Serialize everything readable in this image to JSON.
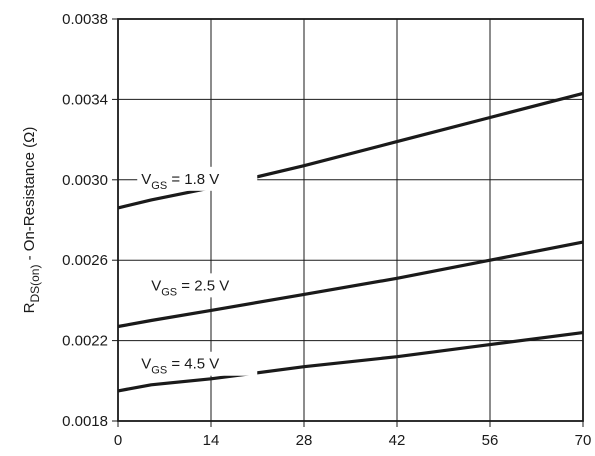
{
  "chart_data": {
    "type": "line",
    "xlabel": "",
    "ylabel_parts": {
      "main": "R",
      "subscript": "DS(on)",
      "suffix": " - On-Resistance (Ω)"
    },
    "xlim": [
      0,
      70
    ],
    "ylim": [
      0.0018,
      0.0038
    ],
    "x_ticks": [
      0,
      14,
      28,
      42,
      56,
      70
    ],
    "x_tick_labels": [
      "0",
      "14",
      "28",
      "42",
      "56",
      "70"
    ],
    "y_ticks": [
      0.0018,
      0.0022,
      0.0026,
      0.003,
      0.0034,
      0.0038
    ],
    "y_tick_labels": [
      "0.0018",
      "0.0022",
      "0.0026",
      "0.0030",
      "0.0034",
      "0.0038"
    ],
    "grid": true,
    "series": [
      {
        "label_parts": {
          "main": "V",
          "subscript": "GS",
          "suffix": " = 1.8 V"
        },
        "label_at": [
          3.5,
          0.00298
        ],
        "x": [
          0,
          5,
          14,
          28,
          42,
          56,
          70
        ],
        "y": [
          0.00286,
          0.0029,
          0.00296,
          0.00307,
          0.00319,
          0.00331,
          0.00343
        ]
      },
      {
        "label_parts": {
          "main": "V",
          "subscript": "GS",
          "suffix": " = 2.5 V"
        },
        "label_at": [
          5,
          0.00245
        ],
        "x": [
          0,
          5,
          14,
          28,
          42,
          56,
          70
        ],
        "y": [
          0.00227,
          0.0023,
          0.00235,
          0.00243,
          0.00251,
          0.0026,
          0.00269
        ]
      },
      {
        "label_parts": {
          "main": "V",
          "subscript": "GS",
          "suffix": " = 4.5 V"
        },
        "label_at": [
          3.5,
          0.00206
        ],
        "x": [
          0,
          5,
          14,
          28,
          42,
          56,
          70
        ],
        "y": [
          0.00195,
          0.00198,
          0.00201,
          0.00207,
          0.00212,
          0.00218,
          0.00224
        ]
      }
    ]
  }
}
